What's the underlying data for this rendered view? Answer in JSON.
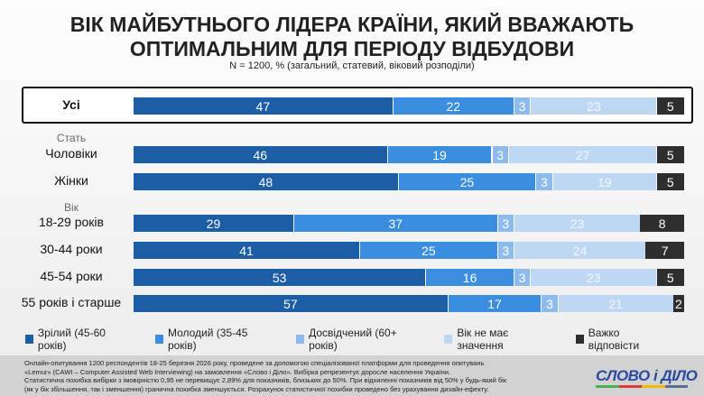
{
  "title_line1": "ВІК МАЙБУТНЬОГО ЛІДЕРА КРАЇНИ, ЯКИЙ ВВАЖАЮТЬ",
  "title_line2": "ОПТИМАЛЬНИМ ДЛЯ ПЕРІОДУ ВІДБУДОВИ",
  "subtitle": "N = 1200, % (загальний, статевий, віковий розподіли)",
  "chart_data": {
    "type": "bar",
    "orientation": "horizontal",
    "stacked": true,
    "groups": [
      {
        "label": "",
        "rows": [
          0
        ]
      },
      {
        "label": "Стать",
        "rows": [
          1,
          2
        ]
      },
      {
        "label": "Вік",
        "rows": [
          3,
          4,
          5,
          6
        ]
      }
    ],
    "categories": [
      "Усі",
      "Чоловіки",
      "Жінки",
      "18-29 років",
      "30-44 роки",
      "45-54 роки",
      "55 років і старше"
    ],
    "series": [
      {
        "name": "Зрілий (45-60 років)",
        "color": "#1b5ea6",
        "values": [
          47,
          46,
          48,
          29,
          41,
          53,
          57
        ]
      },
      {
        "name": "Молодий (35-45 років)",
        "color": "#3a8ddf",
        "values": [
          22,
          19,
          25,
          37,
          25,
          16,
          17
        ]
      },
      {
        "name": "Досвідчений (60+ років)",
        "color": "#8cbbec",
        "values": [
          3,
          3,
          3,
          3,
          3,
          3,
          3
        ]
      },
      {
        "name": "Вік не має значення",
        "color": "#bed8f3",
        "values": [
          23,
          27,
          19,
          23,
          24,
          23,
          21
        ]
      },
      {
        "name": "Важко відповісти",
        "color": "#2e2e2e",
        "values": [
          5,
          5,
          5,
          8,
          7,
          5,
          2
        ]
      }
    ],
    "legend_position": "bottom",
    "highlighted_row": "Усі"
  },
  "footnote": [
    "Онлайн-опитування 1200 респондентів 18-25 березня 2026 року, проведене за допомогою спеціалізованої платформи для проведення опитувань",
    "«Lemur» (CAWI – Computer Assisted Web Interviewing) на замовлення «Слово і Діло». Вибірка репрезентує доросле населення України.",
    "Статистична похибка вибірки з імовірністю 0,95 не перевищує 2,89% для показників, близьких до 50%. При відхиленні показників від 50% у будь-який бік",
    "(як у бік збільшення, так і зменшення) гранична похибка зменшується. Розрахунок статистичної похибки проведено без урахування дизайн-ефекту."
  ],
  "logo": "СЛОВО і ДІЛО"
}
